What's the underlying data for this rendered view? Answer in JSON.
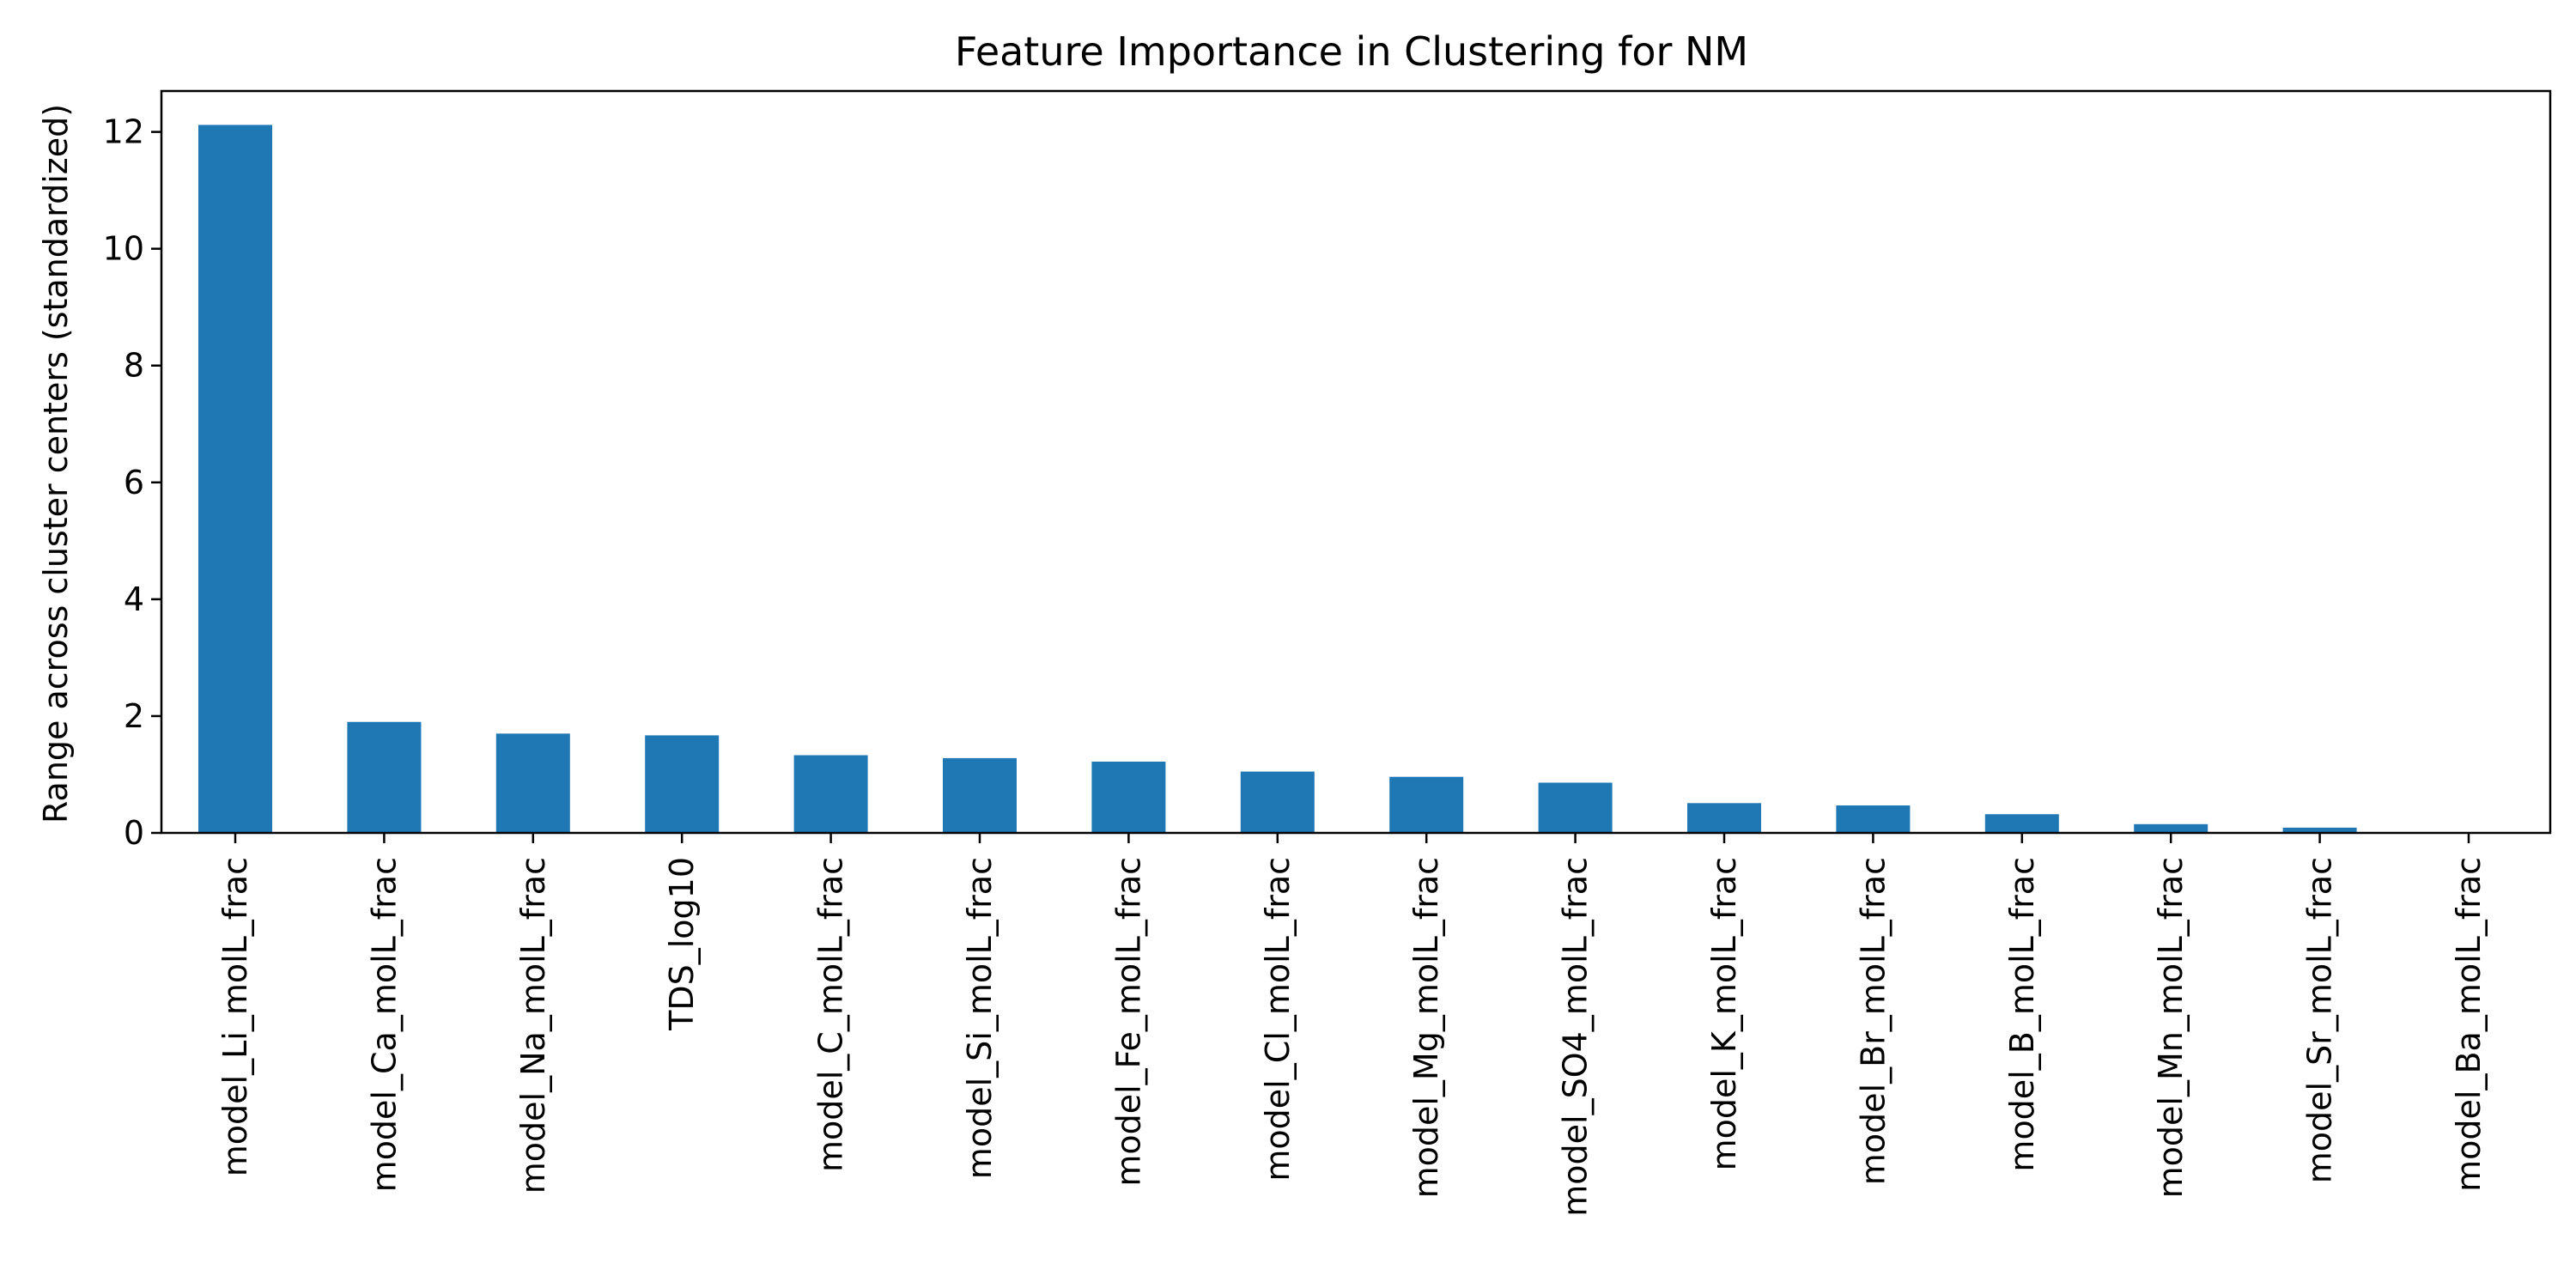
{
  "chart_data": {
    "type": "bar",
    "title": "Feature Importance in Clustering for NM",
    "xlabel": "",
    "ylabel": "Range across cluster centers (standardized)",
    "categories": [
      "model_Li_molL_frac",
      "model_Ca_molL_frac",
      "model_Na_molL_frac",
      "TDS_log10",
      "model_C_molL_frac",
      "model_Si_molL_frac",
      "model_Fe_molL_frac",
      "model_Cl_molL_frac",
      "model_Mg_molL_frac",
      "model_SO4_molL_frac",
      "model_K_molL_frac",
      "model_Br_molL_frac",
      "model_B_molL_frac",
      "model_Mn_molL_frac",
      "model_Sr_molL_frac",
      "model_Ba_molL_frac"
    ],
    "values": [
      12.12,
      1.9,
      1.7,
      1.67,
      1.33,
      1.28,
      1.22,
      1.05,
      0.96,
      0.86,
      0.51,
      0.47,
      0.32,
      0.15,
      0.09,
      0.0
    ],
    "ylim": [
      0,
      12.7
    ],
    "yticks": [
      "0",
      "2",
      "4",
      "6",
      "8",
      "10",
      "12"
    ],
    "bar_color": "#1f77b4",
    "grid": false,
    "legend": "none"
  }
}
